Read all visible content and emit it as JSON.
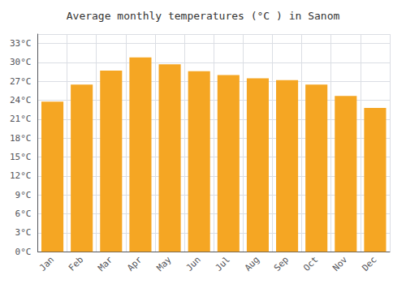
{
  "chart_data": {
    "type": "bar",
    "title": "Average monthly temperatures (°C ) in Sanom",
    "categories": [
      "Jan",
      "Feb",
      "Mar",
      "Apr",
      "May",
      "Jun",
      "Jul",
      "Aug",
      "Sep",
      "Oct",
      "Nov",
      "Dec"
    ],
    "values": [
      23.8,
      26.5,
      28.7,
      30.8,
      29.7,
      28.6,
      28.0,
      27.5,
      27.2,
      26.5,
      24.7,
      22.8
    ],
    "color": "#F5A623",
    "ylim": [
      0,
      34.5
    ],
    "yticks": [
      {
        "value": 0,
        "label": "0°C"
      },
      {
        "value": 3,
        "label": "3°C"
      },
      {
        "value": 6,
        "label": "6°C"
      },
      {
        "value": 9,
        "label": "9°C"
      },
      {
        "value": 12,
        "label": "12°C"
      },
      {
        "value": 15,
        "label": "15°C"
      },
      {
        "value": 18,
        "label": "18°C"
      },
      {
        "value": 21,
        "label": "21°C"
      },
      {
        "value": 24,
        "label": "24°C"
      },
      {
        "value": 27,
        "label": "27°C"
      },
      {
        "value": 30,
        "label": "30°C"
      },
      {
        "value": 33,
        "label": "33°C"
      }
    ],
    "grid": true
  }
}
